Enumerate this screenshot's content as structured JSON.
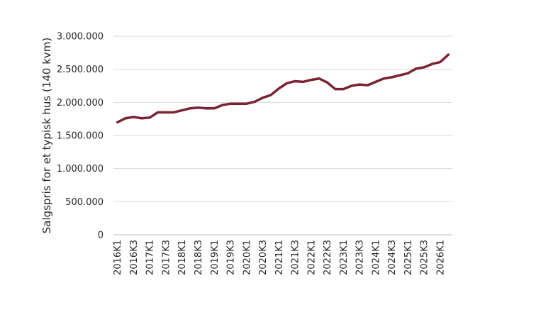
{
  "chart_data": {
    "type": "line",
    "title": "",
    "xlabel": "",
    "ylabel": "Salgspris for et typisk hus (140 kvm)",
    "ylim": [
      0,
      3000000
    ],
    "y_ticks": [
      0,
      500000,
      1000000,
      1500000,
      2000000,
      2500000,
      3000000
    ],
    "y_tick_labels": [
      "0",
      "500.000",
      "1.000.000",
      "1.500.000",
      "2.000.000",
      "2.500.000",
      "3.000.000"
    ],
    "grid": true,
    "legend": "none",
    "x": [
      "2016K1",
      "2016K2",
      "2016K3",
      "2016K4",
      "2017K1",
      "2017K2",
      "2017K3",
      "2017K4",
      "2018K1",
      "2018K2",
      "2018K3",
      "2018K4",
      "2019K1",
      "2019K2",
      "2019K3",
      "2019K4",
      "2020K1",
      "2020K2",
      "2020K3",
      "2020K4",
      "2021K1",
      "2021K2",
      "2021K3",
      "2021K4",
      "2022K1",
      "2022K2",
      "2022K3",
      "2022K4",
      "2023K1",
      "2023K2",
      "2023K3",
      "2023K4",
      "2024K1",
      "2024K2",
      "2024K3",
      "2024K4",
      "2025K1",
      "2025K2",
      "2025K3",
      "2025K4",
      "2026K1",
      "2026K2"
    ],
    "x_tick_labels": [
      "2016K1",
      "2016K3",
      "2017K1",
      "2017K3",
      "2018K1",
      "2018K3",
      "2019K1",
      "2019K3",
      "2020K1",
      "2020K3",
      "2021K1",
      "2021K3",
      "2022K1",
      "2022K3",
      "2023K1",
      "2023K3",
      "2024K1",
      "2024K3",
      "2025K1",
      "2025K3",
      "2026K1"
    ],
    "series": [
      {
        "color": "#7b2331",
        "values": [
          1700000,
          1760000,
          1780000,
          1760000,
          1770000,
          1850000,
          1850000,
          1850000,
          1880000,
          1910000,
          1920000,
          1910000,
          1910000,
          1960000,
          1980000,
          1980000,
          1980000,
          2010000,
          2070000,
          2110000,
          2210000,
          2290000,
          2320000,
          2310000,
          2340000,
          2360000,
          2300000,
          2200000,
          2200000,
          2250000,
          2270000,
          2260000,
          2310000,
          2360000,
          2380000,
          2410000,
          2440000,
          2510000,
          2530000,
          2580000,
          2610000,
          2720000
        ]
      }
    ]
  }
}
